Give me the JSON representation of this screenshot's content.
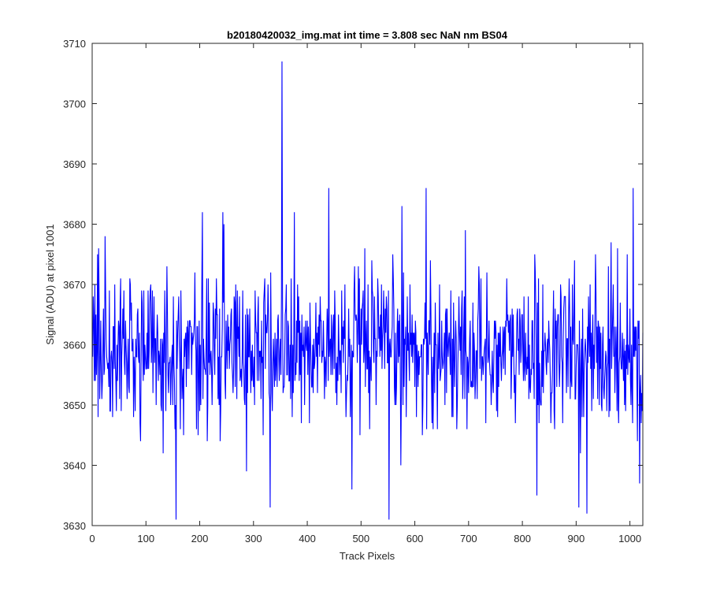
{
  "chart_data": {
    "type": "line",
    "title": "b20180420032_img.mat int time = 3.808 sec  NaN nm BS04",
    "xlabel": "Track Pixels",
    "ylabel": "Signal (ADU) at pixel 1001",
    "xlim": [
      0,
      1024
    ],
    "ylim": [
      3630,
      3710
    ],
    "xticks": [
      0,
      100,
      200,
      300,
      400,
      500,
      600,
      700,
      800,
      900,
      1000
    ],
    "yticks": [
      3630,
      3640,
      3650,
      3660,
      3670,
      3680,
      3690,
      3700,
      3710
    ],
    "grid": false,
    "legend": "none",
    "n_points": 1024,
    "baseline": 3659,
    "spikes": [
      {
        "x": 155,
        "y": 3631
      },
      {
        "x": 204,
        "y": 3682
      },
      {
        "x": 242,
        "y": 3682
      },
      {
        "x": 330,
        "y": 3633
      },
      {
        "x": 352,
        "y": 3707
      },
      {
        "x": 375,
        "y": 3682
      },
      {
        "x": 439,
        "y": 3686
      },
      {
        "x": 482,
        "y": 3636
      },
      {
        "x": 551,
        "y": 3631
      },
      {
        "x": 575,
        "y": 3683
      },
      {
        "x": 620,
        "y": 3686
      },
      {
        "x": 826,
        "y": 3635
      },
      {
        "x": 904,
        "y": 3633
      },
      {
        "x": 919,
        "y": 3632
      },
      {
        "x": 1005,
        "y": 3686
      },
      {
        "x": 1017,
        "y": 3637
      }
    ],
    "series": [
      {
        "color": "#0000ff"
      }
    ]
  }
}
